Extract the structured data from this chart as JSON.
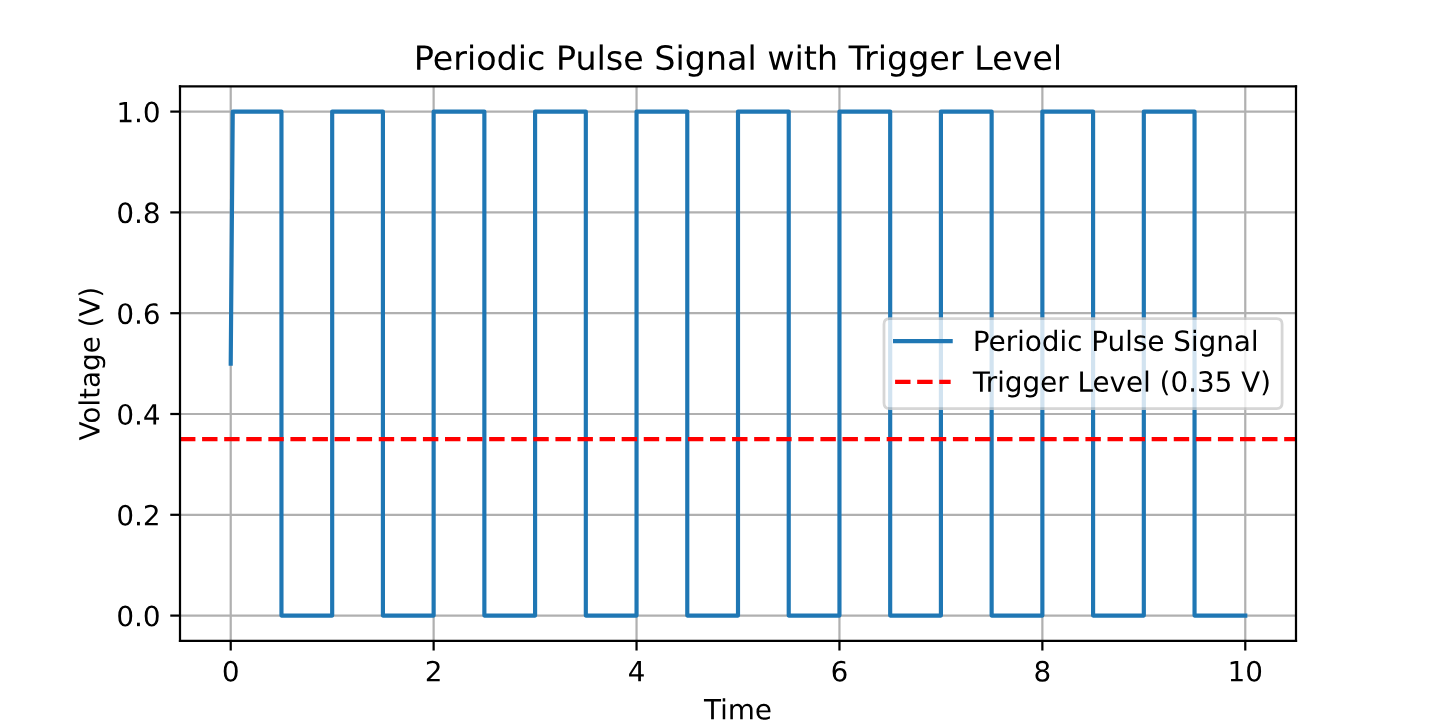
{
  "chart_data": {
    "type": "line",
    "title": "Periodic Pulse Signal with Trigger Level",
    "xlabel": "Time",
    "ylabel": "Voltage (V)",
    "series": [
      {
        "name": "Periodic Pulse Signal",
        "color": "#1f77b4",
        "x": [
          0,
          0.02,
          0.5,
          0.5,
          1,
          1,
          1.5,
          1.5,
          2,
          2,
          2.5,
          2.5,
          3,
          3,
          3.5,
          3.5,
          4,
          4,
          4.5,
          4.5,
          5,
          5,
          5.5,
          5.5,
          6,
          6,
          6.5,
          6.5,
          7,
          7,
          7.5,
          7.5,
          8,
          8,
          8.5,
          8.5,
          9,
          9,
          9.5,
          9.5,
          10
        ],
        "values": [
          0.5,
          1,
          1,
          0,
          0,
          1,
          1,
          0,
          0,
          1,
          1,
          0,
          0,
          1,
          1,
          0,
          0,
          1,
          1,
          0,
          0,
          1,
          1,
          0,
          0,
          1,
          1,
          0,
          0,
          1,
          1,
          0,
          0,
          1,
          1,
          0,
          0,
          1,
          1,
          0,
          0
        ]
      }
    ],
    "ref_lines": [
      {
        "axis": "y",
        "value": 0.35,
        "label": "Trigger Level (0.35 V)",
        "color": "#ff0000",
        "line_style": "dashed"
      }
    ],
    "xlim": [
      -0.5,
      10.5
    ],
    "ylim": [
      -0.05,
      1.05
    ],
    "xticks": [
      0,
      2,
      4,
      6,
      8,
      10
    ],
    "yticks": [
      {
        "value": 0,
        "label": "0.0"
      },
      {
        "value": 0.2,
        "label": "0.2"
      },
      {
        "value": 0.4,
        "label": "0.4"
      },
      {
        "value": 0.6,
        "label": "0.6"
      },
      {
        "value": 0.8,
        "label": "0.8"
      },
      {
        "value": 1,
        "label": "1.0"
      }
    ],
    "grid": true,
    "legend": "right"
  }
}
